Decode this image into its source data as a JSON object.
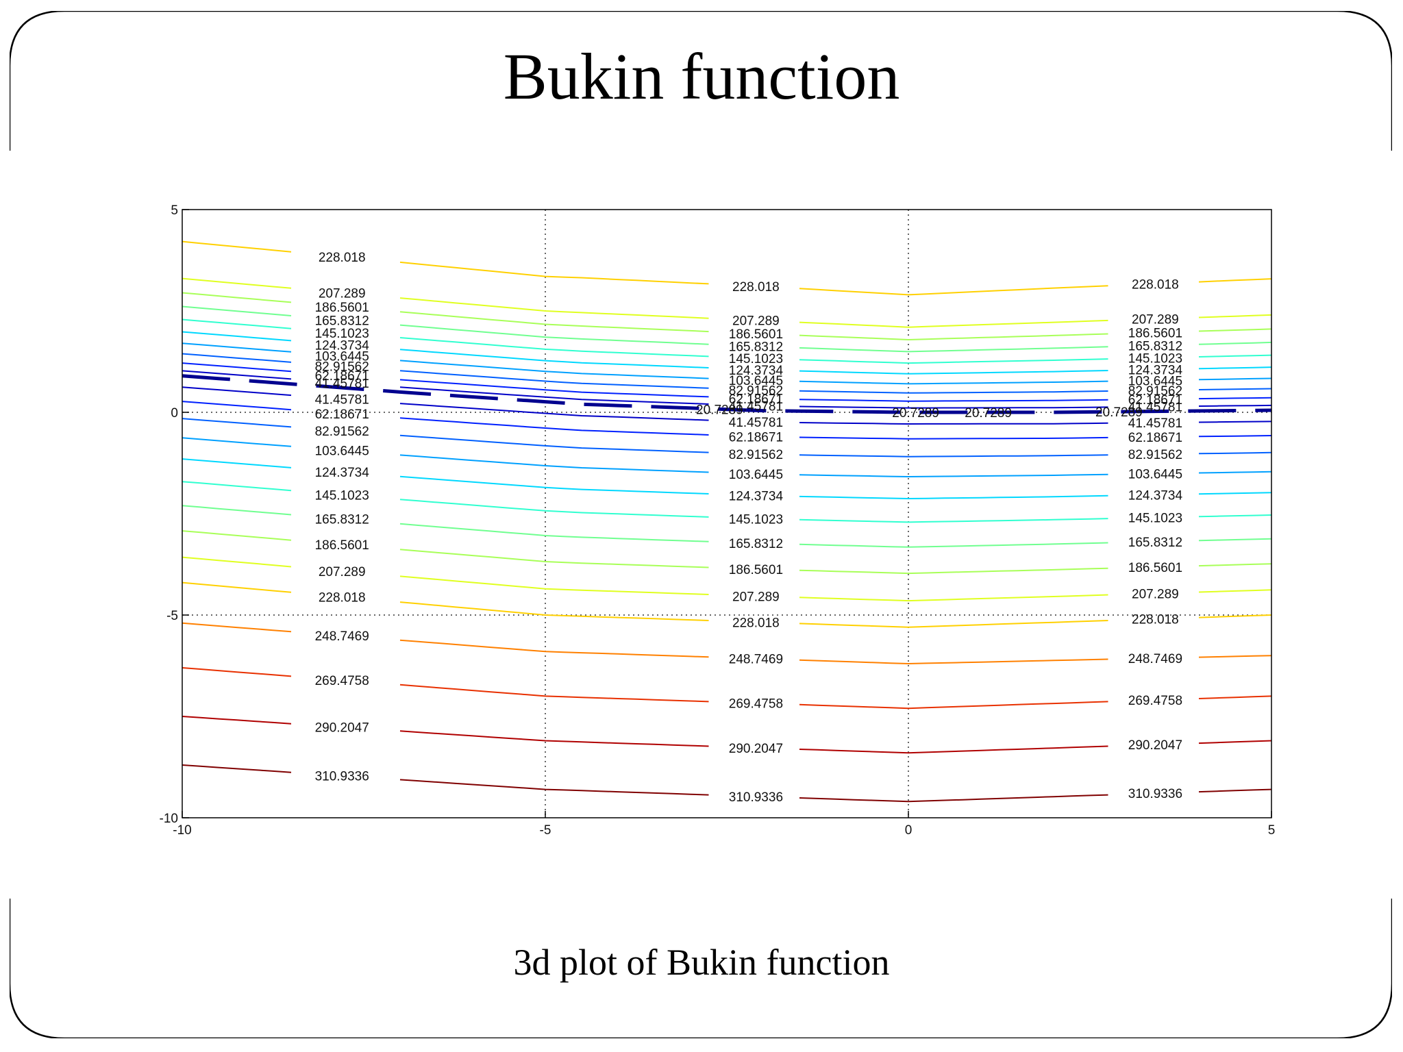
{
  "slide": {
    "title": "Bukin function",
    "caption": "3d plot of Bukin function"
  },
  "chart_data": {
    "type": "contour",
    "xlim": [
      -10,
      5
    ],
    "ylim": [
      -10,
      5
    ],
    "xticks": [
      -10,
      -5,
      0,
      5
    ],
    "yticks": [
      -10,
      -5,
      0,
      5
    ],
    "xtick_labels": [
      "-10",
      "-5",
      "0",
      "5"
    ],
    "ytick_labels": [
      "-10",
      "-5",
      "0",
      "5"
    ],
    "grid": "dotted at -5 and 0",
    "levels": [
      "20.7289",
      "41.45781",
      "62.18671",
      "82.91562",
      "103.6445",
      "124.3734",
      "145.1023",
      "165.8312",
      "186.5601",
      "207.289",
      "228.018",
      "248.7469",
      "269.4758",
      "290.2047",
      "310.9336"
    ],
    "level_colors": [
      "#00008f",
      "#0000c8",
      "#0020ff",
      "#0060ff",
      "#00a0ff",
      "#00d8ff",
      "#30ffd0",
      "#70ff90",
      "#a8ff58",
      "#e0ff20",
      "#ffd000",
      "#ff8000",
      "#e83000",
      "#b00000",
      "#800000"
    ],
    "contours": [
      {
        "level": "20.7289",
        "x": [
          -10,
          -7,
          -4.5,
          -2,
          0,
          2,
          5
        ],
        "y": [
          0.9,
          0.5,
          0.2,
          0.04,
          0,
          0,
          0.05
        ]
      },
      {
        "level": "207.289",
        "x": [
          -10,
          -5,
          0,
          5
        ],
        "y": [
          3.3,
          2.5,
          2.1,
          2.4
        ]
      },
      {
        "level": "228.018",
        "x": [
          -10,
          -5,
          0,
          5
        ],
        "y": [
          -4.2,
          -5.0,
          -5.3,
          -5.0
        ]
      },
      {
        "level": "248.7469",
        "x": [
          -10,
          -5,
          0,
          5
        ],
        "y": [
          -5.2,
          -5.9,
          -6.2,
          -6.0
        ]
      },
      {
        "level": "269.4758",
        "x": [
          -10,
          -5,
          0,
          5
        ],
        "y": [
          -6.3,
          -7.0,
          -7.3,
          -7.0
        ]
      },
      {
        "level": "290.2047",
        "x": [
          -10,
          -5,
          0,
          5
        ],
        "y": [
          -7.5,
          -8.1,
          -8.4,
          -8.1
        ]
      },
      {
        "level": "310.9336",
        "x": [
          -10,
          -5,
          0,
          5
        ],
        "y": [
          -8.7,
          -9.3,
          -9.6,
          -9.3
        ]
      }
    ]
  }
}
